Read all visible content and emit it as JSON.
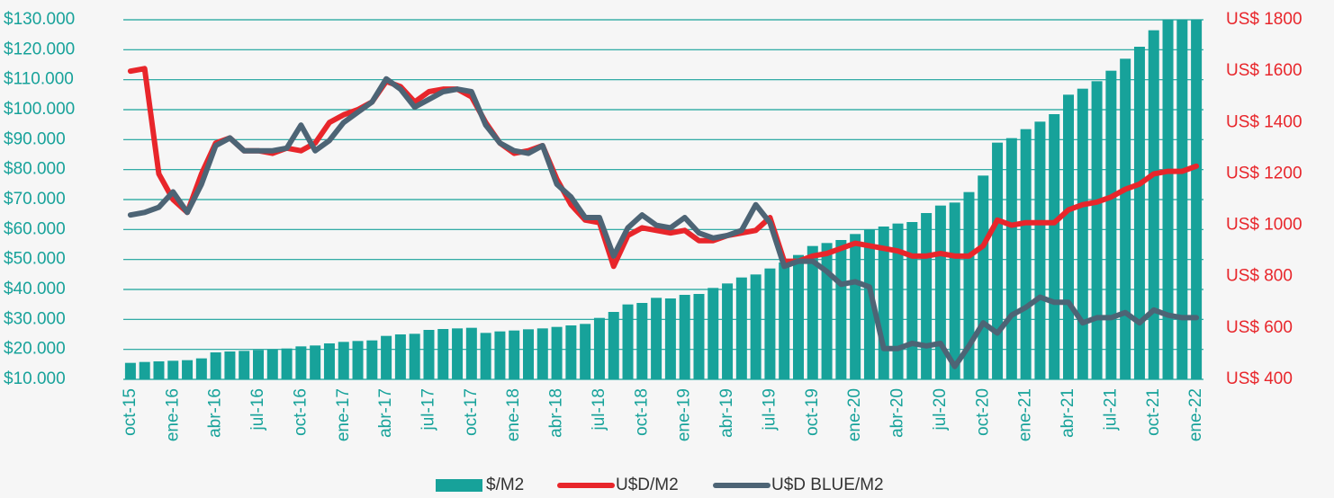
{
  "chart_data": {
    "type": "bar-line",
    "categories": [
      "oct-15",
      null,
      null,
      "ene-16",
      null,
      null,
      "abr-16",
      null,
      null,
      "jul-16",
      null,
      null,
      "oct-16",
      null,
      null,
      "ene-17",
      null,
      null,
      "abr-17",
      null,
      null,
      "jul-17",
      null,
      null,
      "oct-17",
      null,
      null,
      "ene-18",
      null,
      null,
      "abr-18",
      null,
      null,
      "jul-18",
      null,
      null,
      "oct-18",
      null,
      null,
      "ene-19",
      null,
      null,
      "abr-19",
      null,
      null,
      "jul-19",
      null,
      null,
      "oct-19",
      null,
      null,
      "ene-20",
      null,
      null,
      "abr-20",
      null,
      null,
      "jul-20",
      null,
      null,
      "oct-20",
      null,
      null,
      "ene-21",
      null,
      null,
      "abr-21",
      null,
      null,
      "jul-21",
      null,
      null,
      "oct-21",
      null,
      null,
      "ene-22"
    ],
    "series": [
      {
        "name": "$/M2",
        "type": "bar",
        "axis": "y",
        "color": "#17a29a",
        "values": [
          15500,
          15800,
          16000,
          16200,
          16400,
          17000,
          19000,
          19300,
          19500,
          19800,
          20000,
          20300,
          21000,
          21300,
          22000,
          22500,
          22800,
          23000,
          24500,
          25000,
          25200,
          26500,
          26800,
          27000,
          27200,
          25500,
          26000,
          26300,
          26700,
          27000,
          27500,
          28000,
          28500,
          30500,
          32500,
          35000,
          35500,
          37200,
          37000,
          38200,
          38500,
          40500,
          42000,
          44000,
          45000,
          47000,
          49000,
          51500,
          54500,
          55500,
          56500,
          58500,
          60000,
          61000,
          62000,
          62500,
          65500,
          68000,
          69000,
          72500,
          78000,
          89000,
          90500,
          93500,
          96000,
          98500,
          105000,
          107000,
          109500,
          113000,
          117000,
          121000,
          126500,
          130000,
          130000,
          130000
        ]
      },
      {
        "name": "U$D/M2",
        "type": "line",
        "axis": "y2",
        "color": "#e8262b",
        "values": [
          1600,
          1610,
          1200,
          1100,
          1050,
          1200,
          1320,
          1340,
          1290,
          1290,
          1280,
          1300,
          1290,
          1320,
          1400,
          1430,
          1450,
          1480,
          1560,
          1540,
          1480,
          1520,
          1530,
          1530,
          1500,
          1400,
          1320,
          1280,
          1290,
          1310,
          1180,
          1080,
          1020,
          1010,
          840,
          960,
          990,
          980,
          970,
          980,
          940,
          940,
          960,
          970,
          980,
          1030,
          860,
          860,
          880,
          890,
          910,
          930,
          920,
          910,
          900,
          880,
          880,
          890,
          880,
          880,
          920,
          1020,
          1000,
          1010,
          1010,
          1010,
          1060,
          1080,
          1090,
          1110,
          1140,
          1160,
          1200,
          1210,
          1210,
          1230
        ]
      },
      {
        "name": "U$D BLUE/M2",
        "type": "line",
        "axis": "y2",
        "color": "#4d6475",
        "values": [
          1040,
          1050,
          1070,
          1130,
          1050,
          1160,
          1310,
          1340,
          1290,
          1290,
          1290,
          1300,
          1390,
          1290,
          1330,
          1400,
          1440,
          1480,
          1570,
          1530,
          1460,
          1490,
          1520,
          1530,
          1520,
          1390,
          1320,
          1290,
          1280,
          1310,
          1160,
          1110,
          1030,
          1030,
          880,
          990,
          1040,
          1000,
          990,
          1030,
          970,
          950,
          960,
          980,
          1080,
          1010,
          840,
          860,
          860,
          820,
          770,
          780,
          760,
          520,
          520,
          540,
          530,
          540,
          450,
          530,
          620,
          580,
          650,
          680,
          720,
          700,
          700,
          620,
          640,
          640,
          660,
          620,
          670,
          650,
          640,
          640
        ]
      }
    ],
    "ylim": [
      10000,
      130000
    ],
    "yticks": [
      {
        "value": 10000,
        "label": "$10.000"
      },
      {
        "value": 20000,
        "label": "$20.000"
      },
      {
        "value": 30000,
        "label": "$30.000"
      },
      {
        "value": 40000,
        "label": "$40.000"
      },
      {
        "value": 50000,
        "label": "$50.000"
      },
      {
        "value": 60000,
        "label": "$60.000"
      },
      {
        "value": 70000,
        "label": "$70.000"
      },
      {
        "value": 80000,
        "label": "$80.000"
      },
      {
        "value": 90000,
        "label": "$90.000"
      },
      {
        "value": 100000,
        "label": "$100.000"
      },
      {
        "value": 110000,
        "label": "$110.000"
      },
      {
        "value": 120000,
        "label": "$120.000"
      },
      {
        "value": 130000,
        "label": "$130.000"
      }
    ],
    "y2lim": [
      400,
      1800
    ],
    "y2ticks": [
      {
        "value": 400,
        "label": "US$ 400"
      },
      {
        "value": 600,
        "label": "US$ 600"
      },
      {
        "value": 800,
        "label": "US$ 800"
      },
      {
        "value": 1000,
        "label": "US$ 1000"
      },
      {
        "value": 1200,
        "label": "US$ 1200"
      },
      {
        "value": 1400,
        "label": "US$ 1400"
      },
      {
        "value": 1600,
        "label": "US$ 1600"
      },
      {
        "value": 1800,
        "label": "US$ 1800"
      }
    ],
    "grid": true,
    "legend": "bottom"
  }
}
